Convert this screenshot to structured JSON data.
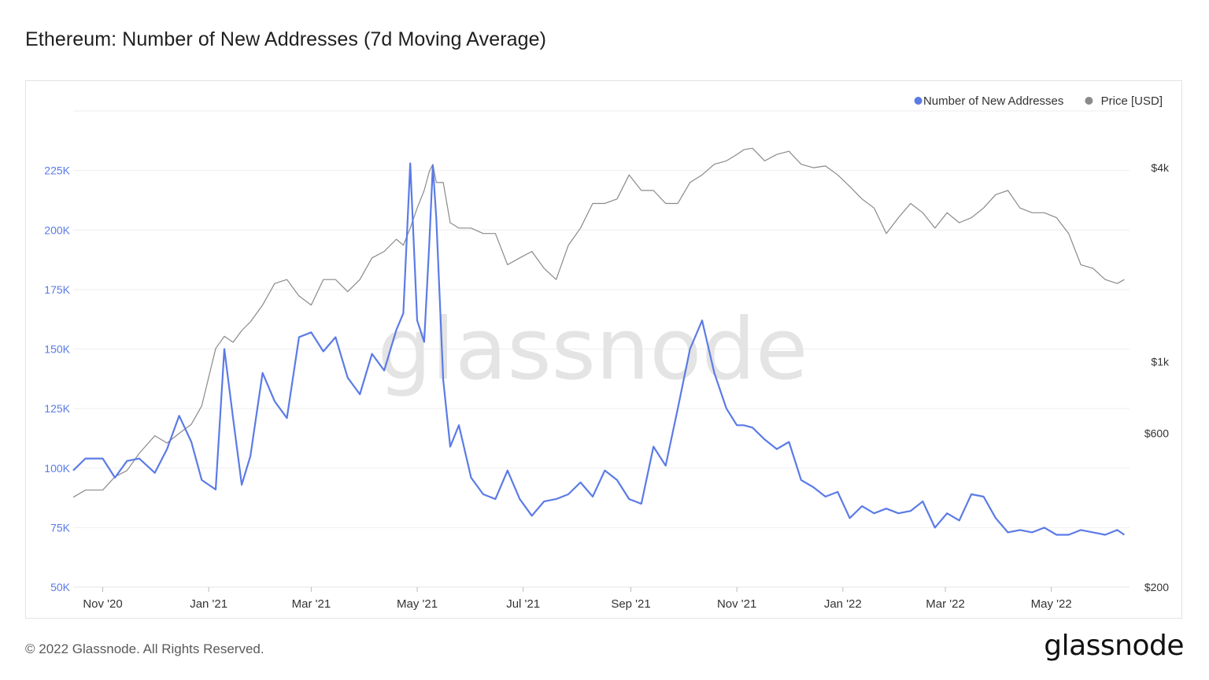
{
  "page": {
    "title": "Ethereum: Number of New Addresses (7d Moving Average)",
    "watermark": "glassnode",
    "copyright": "© 2022 Glassnode. All Rights Reserved.",
    "logo_text": "glassnode"
  },
  "chart_data": {
    "type": "line",
    "title": "Ethereum: Number of New Addresses (7d Moving Average)",
    "x_ticks": [
      "Nov '20",
      "Jan '21",
      "Mar '21",
      "May '21",
      "Jul '21",
      "Sep '21",
      "Nov '21",
      "Jan '22",
      "Mar '22",
      "May '22"
    ],
    "x_tick_dates": [
      "2020-11-01",
      "2021-01-01",
      "2021-03-01",
      "2021-05-01",
      "2021-07-01",
      "2021-09-01",
      "2021-11-01",
      "2022-01-01",
      "2022-03-01",
      "2022-05-01"
    ],
    "x_range": [
      "2020-10-15",
      "2022-06-15"
    ],
    "left_axis": {
      "ticks": [
        50000,
        75000,
        100000,
        125000,
        150000,
        175000,
        200000,
        225000
      ],
      "tick_labels": [
        "50K",
        "75K",
        "100K",
        "125K",
        "150K",
        "175K",
        "200K",
        "225K"
      ],
      "ylim": [
        50000,
        250000
      ]
    },
    "right_axis": {
      "scale": "log",
      "ticks": [
        200,
        600,
        1000,
        4000
      ],
      "tick_labels": [
        "$200",
        "$600",
        "$1k",
        "$4k"
      ],
      "ylim": [
        200,
        6000
      ]
    },
    "grid": "horizontal",
    "legend_position": "top-right",
    "series": [
      {
        "name": "Number of New Addresses",
        "axis": "left",
        "color": "#5b7be6",
        "x": [
          "2020-10-15",
          "2020-10-22",
          "2020-11-01",
          "2020-11-08",
          "2020-11-15",
          "2020-11-22",
          "2020-12-01",
          "2020-12-08",
          "2020-12-15",
          "2020-12-22",
          "2020-12-28",
          "2021-01-05",
          "2021-01-10",
          "2021-01-15",
          "2021-01-20",
          "2021-01-25",
          "2021-02-01",
          "2021-02-08",
          "2021-02-15",
          "2021-02-22",
          "2021-03-01",
          "2021-03-08",
          "2021-03-15",
          "2021-03-22",
          "2021-03-29",
          "2021-04-05",
          "2021-04-12",
          "2021-04-19",
          "2021-04-23",
          "2021-04-27",
          "2021-05-01",
          "2021-05-05",
          "2021-05-08",
          "2021-05-10",
          "2021-05-12",
          "2021-05-16",
          "2021-05-20",
          "2021-05-25",
          "2021-06-01",
          "2021-06-08",
          "2021-06-15",
          "2021-06-22",
          "2021-06-29",
          "2021-07-06",
          "2021-07-13",
          "2021-07-20",
          "2021-07-27",
          "2021-08-03",
          "2021-08-10",
          "2021-08-17",
          "2021-08-24",
          "2021-08-31",
          "2021-09-07",
          "2021-09-14",
          "2021-09-21",
          "2021-09-28",
          "2021-10-05",
          "2021-10-12",
          "2021-10-19",
          "2021-10-26",
          "2021-11-01",
          "2021-11-05",
          "2021-11-10",
          "2021-11-17",
          "2021-11-24",
          "2021-12-01",
          "2021-12-08",
          "2021-12-15",
          "2021-12-22",
          "2021-12-29",
          "2022-01-05",
          "2022-01-12",
          "2022-01-19",
          "2022-01-26",
          "2022-02-02",
          "2022-02-09",
          "2022-02-16",
          "2022-02-23",
          "2022-03-02",
          "2022-03-09",
          "2022-03-16",
          "2022-03-23",
          "2022-03-30",
          "2022-04-06",
          "2022-04-13",
          "2022-04-20",
          "2022-04-27",
          "2022-05-04",
          "2022-05-11",
          "2022-05-18",
          "2022-05-25",
          "2022-06-01",
          "2022-06-08",
          "2022-06-12"
        ],
        "y": [
          99000,
          104000,
          104000,
          96000,
          103000,
          104000,
          98000,
          108000,
          122000,
          111000,
          95000,
          91000,
          150000,
          121000,
          93000,
          105000,
          140000,
          128000,
          121000,
          155000,
          157000,
          149000,
          155000,
          138000,
          131000,
          148000,
          141000,
          158000,
          165000,
          228000,
          162000,
          153000,
          195000,
          227000,
          205000,
          137000,
          109000,
          118000,
          96000,
          89000,
          87000,
          99000,
          87000,
          80000,
          86000,
          87000,
          89000,
          94000,
          88000,
          99000,
          95000,
          87000,
          85000,
          109000,
          101000,
          125000,
          150000,
          162000,
          140000,
          125000,
          118000,
          118000,
          117000,
          112000,
          108000,
          111000,
          95000,
          92000,
          88000,
          90000,
          79000,
          84000,
          81000,
          83000,
          81000,
          82000,
          86000,
          75000,
          81000,
          78000,
          89000,
          88000,
          79000,
          73000,
          74000,
          73000,
          75000,
          72000,
          72000,
          74000,
          73000,
          72000,
          74000,
          72000
        ]
      },
      {
        "name": "Price [USD]",
        "axis": "right",
        "color": "#8a8a8a",
        "x": [
          "2020-10-15",
          "2020-10-22",
          "2020-11-01",
          "2020-11-08",
          "2020-11-15",
          "2020-11-22",
          "2020-12-01",
          "2020-12-08",
          "2020-12-15",
          "2020-12-22",
          "2020-12-28",
          "2021-01-05",
          "2021-01-10",
          "2021-01-15",
          "2021-01-20",
          "2021-01-25",
          "2021-02-01",
          "2021-02-08",
          "2021-02-15",
          "2021-02-22",
          "2021-03-01",
          "2021-03-08",
          "2021-03-15",
          "2021-03-22",
          "2021-03-29",
          "2021-04-05",
          "2021-04-12",
          "2021-04-19",
          "2021-04-23",
          "2021-04-27",
          "2021-05-01",
          "2021-05-05",
          "2021-05-08",
          "2021-05-10",
          "2021-05-12",
          "2021-05-16",
          "2021-05-20",
          "2021-05-25",
          "2021-06-01",
          "2021-06-08",
          "2021-06-15",
          "2021-06-22",
          "2021-06-29",
          "2021-07-06",
          "2021-07-13",
          "2021-07-20",
          "2021-07-27",
          "2021-08-03",
          "2021-08-10",
          "2021-08-17",
          "2021-08-24",
          "2021-08-31",
          "2021-09-07",
          "2021-09-14",
          "2021-09-21",
          "2021-09-28",
          "2021-10-05",
          "2021-10-12",
          "2021-10-19",
          "2021-10-26",
          "2021-11-01",
          "2021-11-05",
          "2021-11-10",
          "2021-11-17",
          "2021-11-24",
          "2021-12-01",
          "2021-12-08",
          "2021-12-15",
          "2021-12-22",
          "2021-12-29",
          "2022-01-05",
          "2022-01-12",
          "2022-01-19",
          "2022-01-26",
          "2022-02-02",
          "2022-02-09",
          "2022-02-16",
          "2022-02-23",
          "2022-03-02",
          "2022-03-09",
          "2022-03-16",
          "2022-03-23",
          "2022-03-30",
          "2022-04-06",
          "2022-04-13",
          "2022-04-20",
          "2022-04-27",
          "2022-05-04",
          "2022-05-11",
          "2022-05-18",
          "2022-05-25",
          "2022-06-01",
          "2022-06-08",
          "2022-06-12"
        ],
        "y": [
          380,
          400,
          400,
          440,
          460,
          520,
          590,
          560,
          600,
          640,
          730,
          1100,
          1200,
          1150,
          1250,
          1330,
          1500,
          1750,
          1800,
          1600,
          1500,
          1800,
          1800,
          1650,
          1800,
          2100,
          2200,
          2400,
          2300,
          2600,
          3000,
          3400,
          3900,
          4100,
          3600,
          3600,
          2700,
          2600,
          2600,
          2500,
          2500,
          2000,
          2100,
          2200,
          1950,
          1800,
          2300,
          2600,
          3100,
          3100,
          3200,
          3800,
          3400,
          3400,
          3100,
          3100,
          3600,
          3800,
          4100,
          4200,
          4400,
          4550,
          4600,
          4200,
          4400,
          4500,
          4100,
          4000,
          4050,
          3800,
          3500,
          3200,
          3000,
          2500,
          2800,
          3100,
          2900,
          2600,
          2900,
          2700,
          2800,
          3000,
          3300,
          3400,
          3000,
          2900,
          2900,
          2800,
          2500,
          2000,
          1950,
          1800,
          1750,
          1800
        ]
      }
    ]
  }
}
